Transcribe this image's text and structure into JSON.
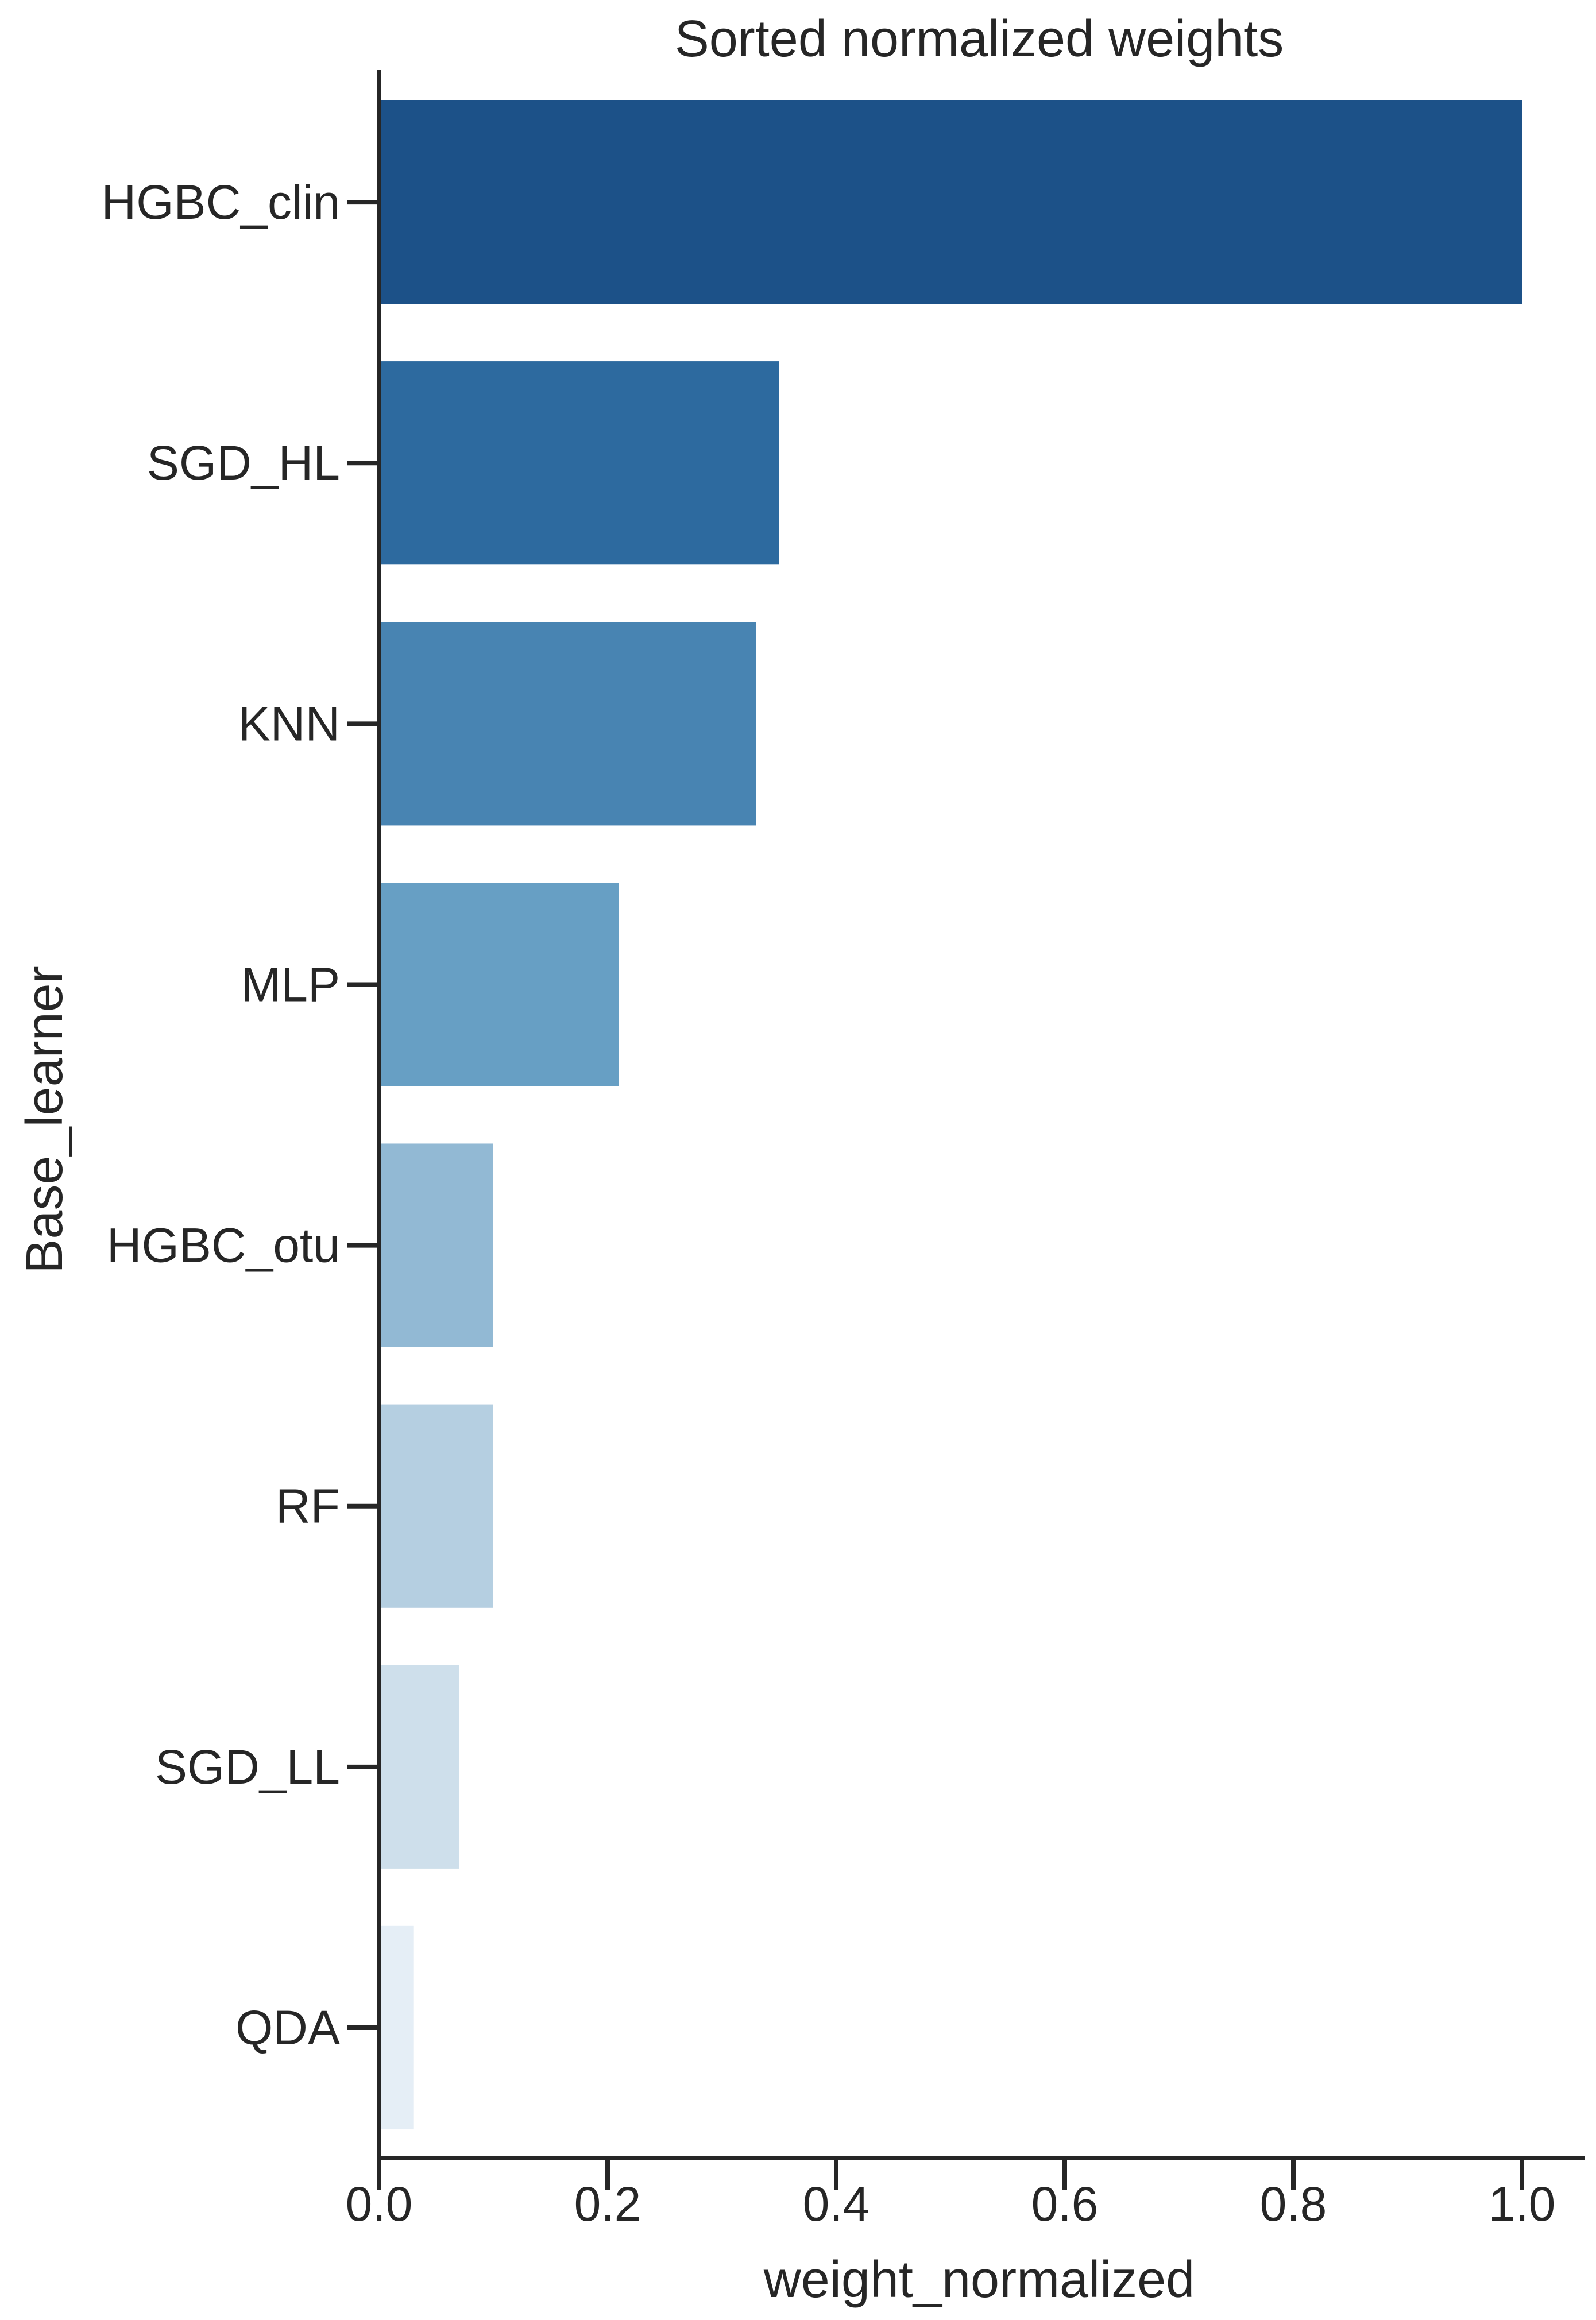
{
  "chart_data": {
    "type": "bar",
    "orientation": "horizontal",
    "title": "Sorted normalized weights",
    "xlabel": "weight_normalized",
    "ylabel": "Base_learner",
    "xlim": [
      0.0,
      1.05
    ],
    "x_ticks": [
      "0.0",
      "0.2",
      "0.4",
      "0.6",
      "0.8",
      "1.0"
    ],
    "x_tick_values": [
      0.0,
      0.2,
      0.4,
      0.6,
      0.8,
      1.0
    ],
    "grid": false,
    "legend": "none",
    "categories": [
      "HGBC_clin",
      "SGD_HL",
      "KNN",
      "MLP",
      "HGBC_otu",
      "RF",
      "SGD_LL",
      "QDA"
    ],
    "values": [
      1.0,
      0.35,
      0.33,
      0.21,
      0.1,
      0.1,
      0.07,
      0.03
    ],
    "colors": [
      "#1c5188",
      "#2d6a9f",
      "#4884b2",
      "#679fc4",
      "#92b9d4",
      "#b5cfe1",
      "#cedfeb",
      "#e5eef6"
    ]
  }
}
